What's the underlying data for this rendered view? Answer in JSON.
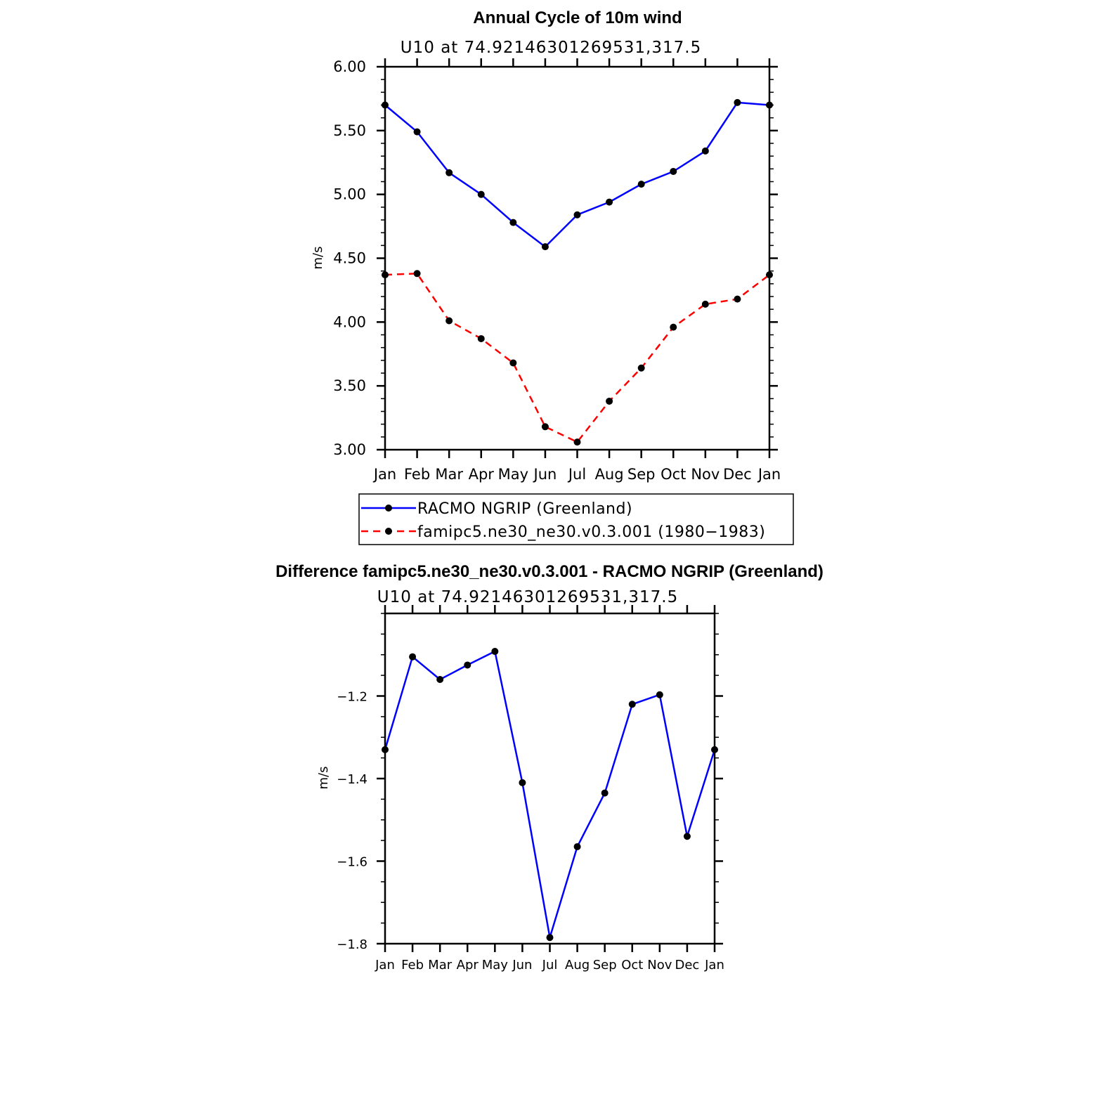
{
  "chart_data": [
    {
      "type": "line",
      "title": "Annual Cycle of 10m wind",
      "subtitle": "U10 at 74.92146301269531,317.5",
      "xlabel": "",
      "ylabel": "m/s",
      "categories": [
        "Jan",
        "Feb",
        "Mar",
        "Apr",
        "May",
        "Jun",
        "Jul",
        "Aug",
        "Sep",
        "Oct",
        "Nov",
        "Dec",
        "Jan"
      ],
      "ylim": [
        3.0,
        6.0
      ],
      "yticks": [
        3.0,
        3.5,
        4.0,
        4.5,
        5.0,
        5.5,
        6.0
      ],
      "ytick_labels": [
        "3.00",
        "3.50",
        "4.00",
        "4.50",
        "5.00",
        "5.50",
        "6.00"
      ],
      "series": [
        {
          "name": "RACMO NGRIP (Greenland)",
          "color": "#0000ff",
          "dash": "solid",
          "values": [
            5.7,
            5.49,
            5.17,
            5.0,
            4.78,
            4.59,
            4.84,
            4.94,
            5.08,
            5.18,
            5.34,
            5.72,
            5.7
          ]
        },
        {
          "name": "famipc5.ne30_ne30.v0.3.001 (1980-1983)",
          "color": "#ff0000",
          "dash": "dashed",
          "values": [
            4.37,
            4.38,
            4.01,
            3.87,
            3.68,
            3.18,
            3.06,
            3.38,
            3.64,
            3.96,
            4.14,
            4.18,
            4.37
          ]
        }
      ],
      "legend": {
        "placement": "below",
        "entries": [
          "RACMO NGRIP (Greenland)",
          "famipc5.ne30_ne30.v0.3.001 (1980−1983)"
        ]
      }
    },
    {
      "type": "line",
      "title": "Difference famipc5.ne30_ne30.v0.3.001 - RACMO NGRIP (Greenland)",
      "subtitle": "U10 at 74.92146301269531,317.5",
      "xlabel": "",
      "ylabel": "m/s",
      "categories": [
        "Jan",
        "Feb",
        "Mar",
        "Apr",
        "May",
        "Jun",
        "Jul",
        "Aug",
        "Sep",
        "Oct",
        "Nov",
        "Dec",
        "Jan"
      ],
      "ylim": [
        -1.8,
        -1.0
      ],
      "yticks": [
        -1.8,
        -1.6,
        -1.4,
        -1.2
      ],
      "ytick_labels": [
        "−1.8",
        "−1.6",
        "−1.4",
        "−1.2"
      ],
      "series": [
        {
          "name": "Difference",
          "color": "#0000ff",
          "dash": "solid",
          "values": [
            -1.33,
            -1.105,
            -1.16,
            -1.125,
            -1.092,
            -1.41,
            -1.785,
            -1.565,
            -1.435,
            -1.22,
            -1.197,
            -1.54,
            -1.33
          ]
        }
      ]
    }
  ]
}
